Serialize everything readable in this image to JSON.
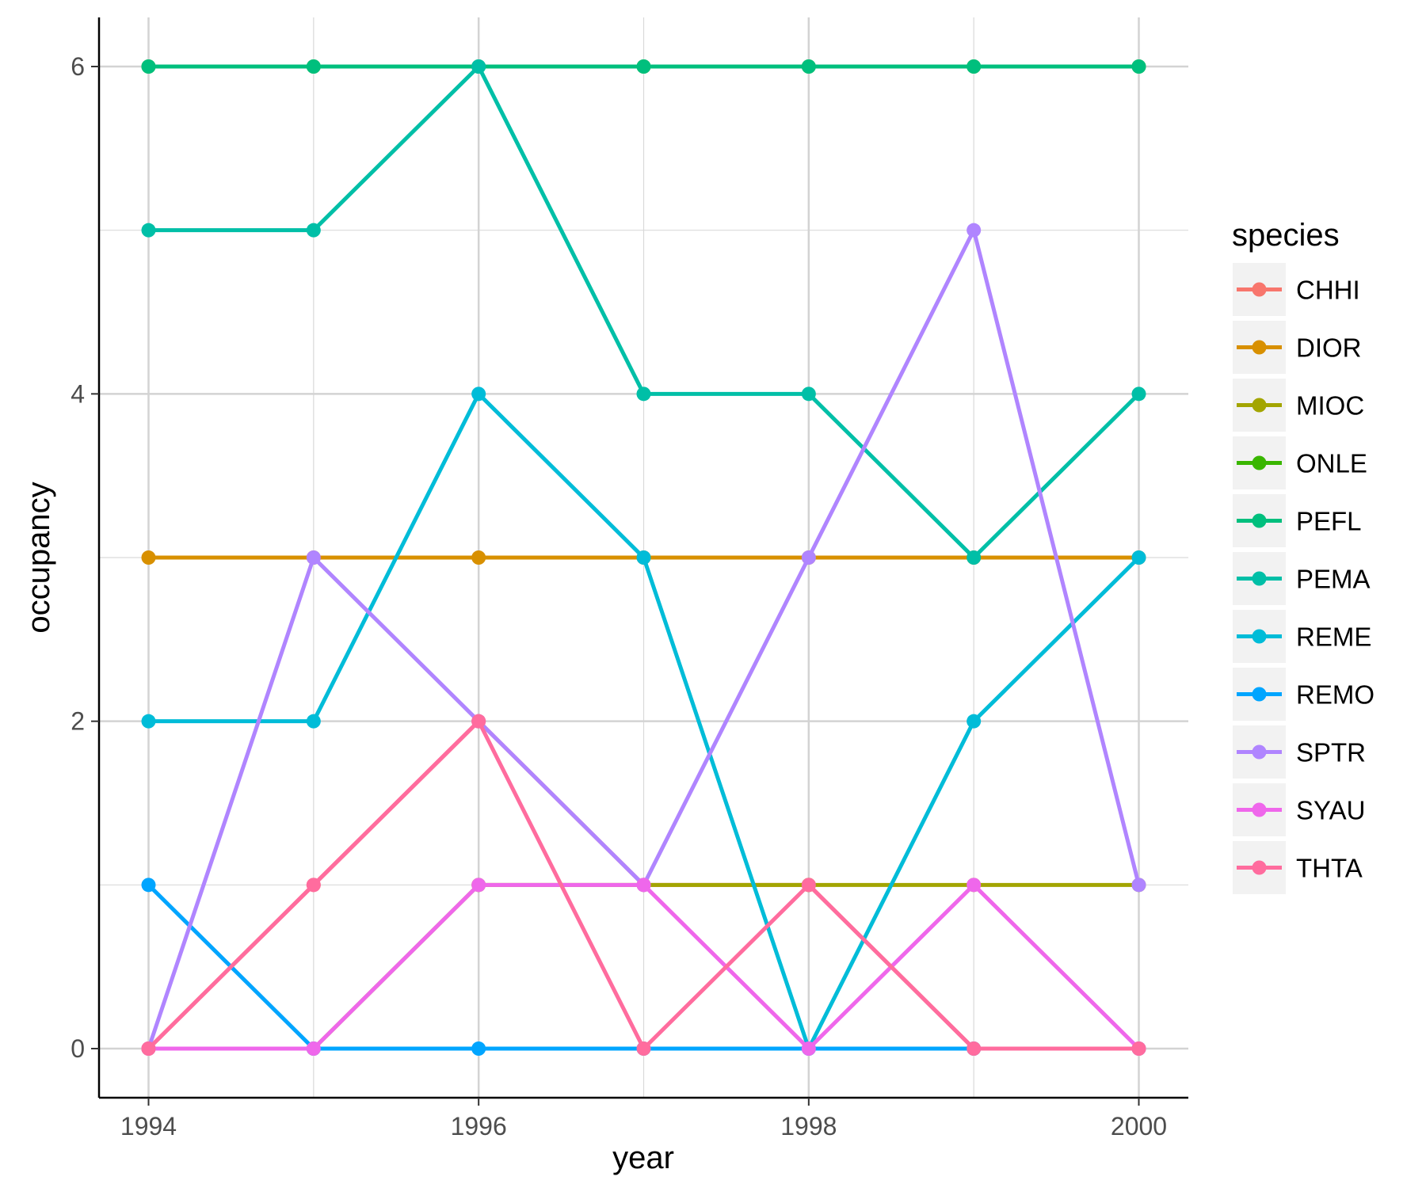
{
  "chart_data": {
    "type": "line",
    "xlabel": "year",
    "ylabel": "occupancy",
    "x": [
      1994,
      1995,
      1996,
      1997,
      1998,
      1999,
      2000
    ],
    "xlim": [
      1993.7,
      2000.3
    ],
    "ylim": [
      -0.3,
      6.3
    ],
    "x_ticks": [
      1994,
      1996,
      1998,
      2000
    ],
    "y_ticks": [
      0,
      2,
      4,
      6
    ],
    "grid": true,
    "legend": {
      "title": "species",
      "placement": "right"
    },
    "series": [
      {
        "name": "CHHI",
        "color": "#F8766D",
        "values": [
          0,
          1,
          2,
          1,
          1,
          0,
          0
        ]
      },
      {
        "name": "DIOR",
        "color": "#D89000",
        "values": [
          3,
          3,
          3,
          3,
          3,
          3,
          3
        ]
      },
      {
        "name": "MIOC",
        "color": "#A3A500",
        "values": [
          0,
          0,
          1,
          1,
          1,
          1,
          1
        ]
      },
      {
        "name": "ONLE",
        "color": "#39B600",
        "values": [
          6,
          6,
          6,
          6,
          6,
          6,
          6
        ]
      },
      {
        "name": "PEFL",
        "color": "#00BF7D",
        "values": [
          6,
          6,
          6,
          6,
          6,
          6,
          6
        ]
      },
      {
        "name": "PEMA",
        "color": "#00BFA7",
        "values": [
          5,
          5,
          6,
          4,
          4,
          3,
          4
        ]
      },
      {
        "name": "REME",
        "color": "#00BCD8",
        "values": [
          2,
          2,
          4,
          3,
          0,
          2,
          3
        ]
      },
      {
        "name": "REMO",
        "color": "#00A5FF",
        "values": [
          1,
          0,
          0,
          0,
          0,
          0,
          0
        ]
      },
      {
        "name": "SPTR",
        "color": "#B085FF",
        "values": [
          0,
          3,
          2,
          1,
          3,
          5,
          1
        ]
      },
      {
        "name": "SYAU",
        "color": "#EF67EB",
        "values": [
          0,
          0,
          1,
          1,
          0,
          1,
          0
        ]
      },
      {
        "name": "THTA",
        "color": "#FF6C9E",
        "values": [
          0,
          1,
          2,
          0,
          1,
          0,
          0
        ]
      }
    ]
  }
}
